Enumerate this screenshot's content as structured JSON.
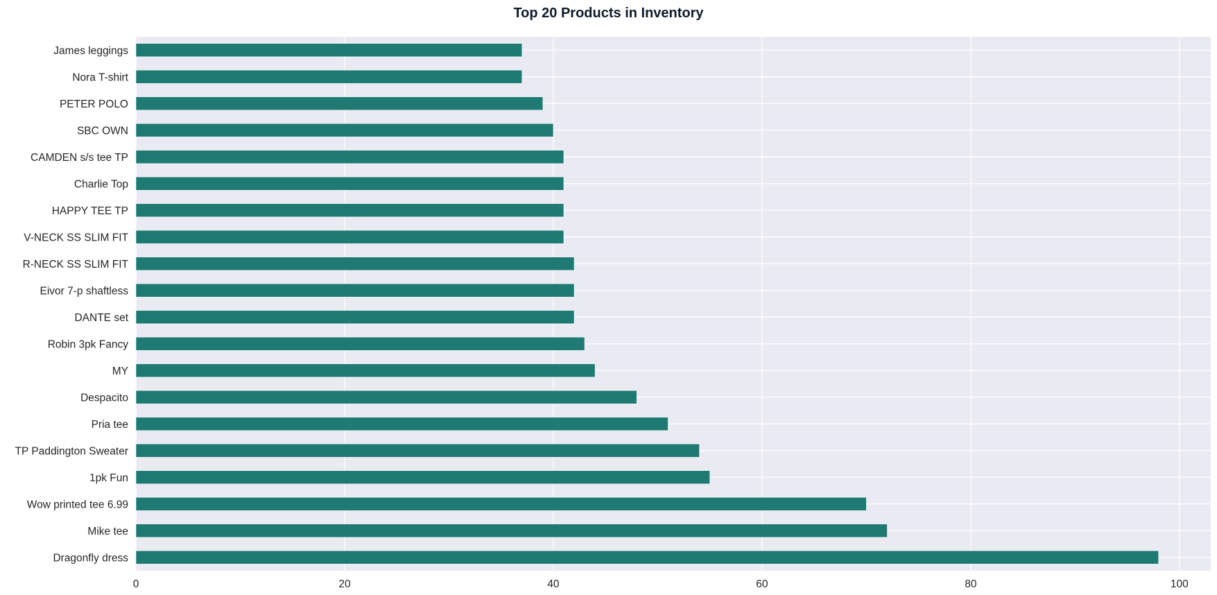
{
  "chart_data": {
    "type": "bar",
    "orientation": "horizontal",
    "title": "Top 20 Products in Inventory",
    "xlabel": "",
    "ylabel": "",
    "categories": [
      "Dragonfly dress",
      "Mike tee",
      "Wow printed tee 6.99",
      "1pk Fun",
      "TP Paddington Sweater",
      "Pria tee",
      "Despacito",
      "MY",
      "Robin 3pk Fancy",
      "DANTE set",
      "Eivor 7-p shaftless",
      "R-NECK SS SLIM FIT",
      "V-NECK SS SLIM FIT",
      "HAPPY TEE TP",
      "Charlie Top",
      "CAMDEN s/s tee TP",
      "SBC OWN",
      "PETER POLO",
      "Nora T-shirt",
      "James leggings"
    ],
    "values": [
      98,
      72,
      70,
      55,
      54,
      51,
      48,
      44,
      43,
      42,
      42,
      42,
      41,
      41,
      41,
      41,
      40,
      39,
      37,
      37
    ],
    "xlim": [
      0,
      103
    ],
    "xticks": [
      0,
      20,
      40,
      60,
      80,
      100
    ],
    "grid": true,
    "legend": "none",
    "bar_color": "#1f7a73",
    "plot_background": "#eaeaf2",
    "grid_color": "#ffffff"
  }
}
